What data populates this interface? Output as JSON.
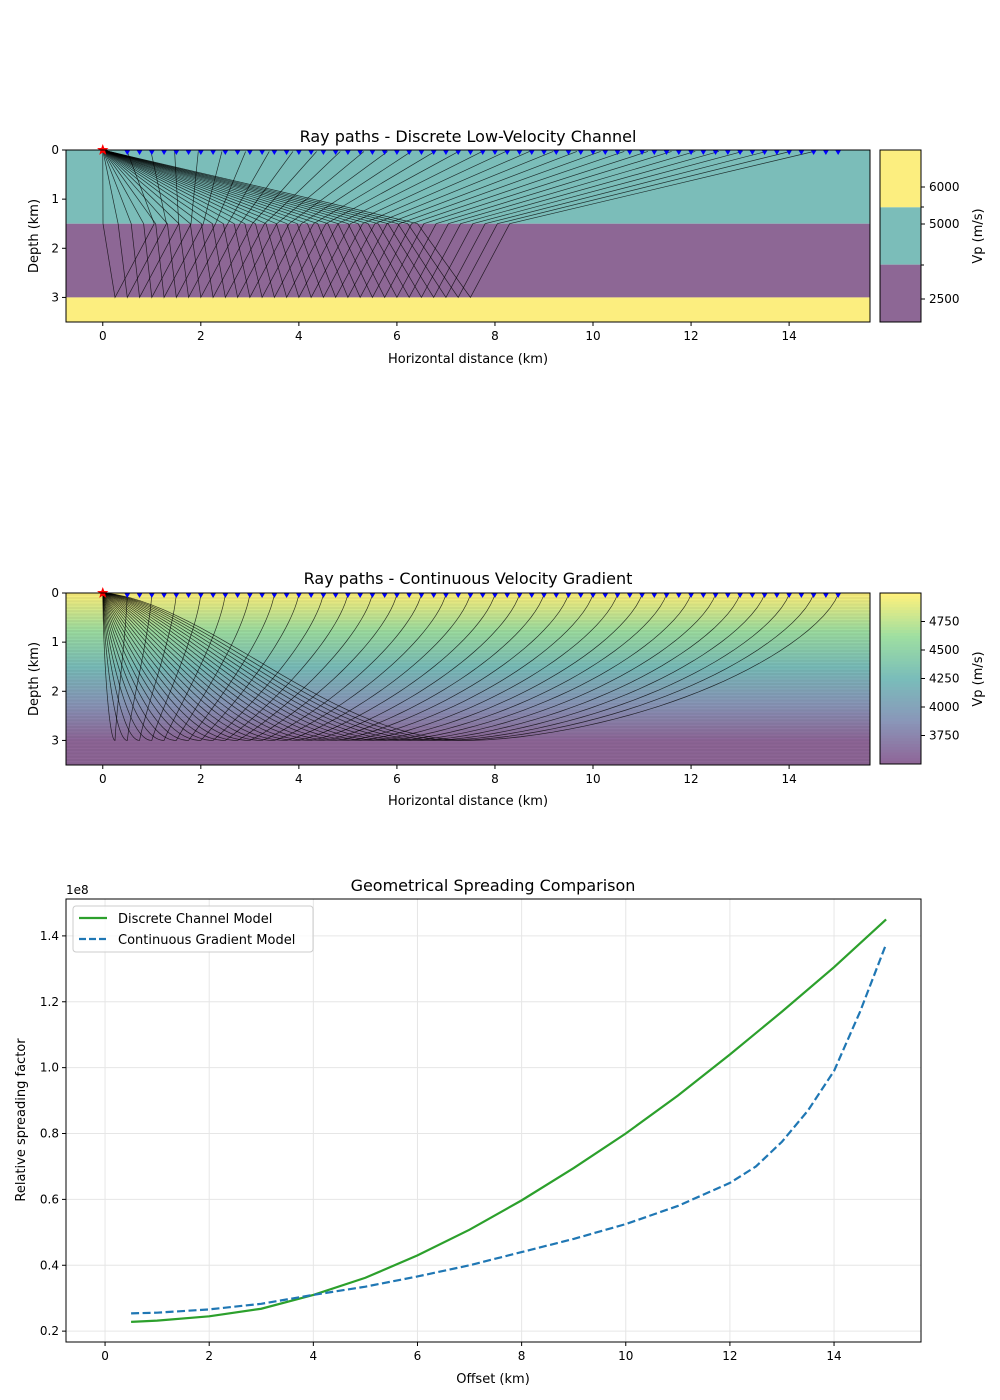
{
  "chart_data": [
    {
      "type": "heatmap",
      "title": "Ray paths - Discrete Low-Velocity Channel",
      "xlabel": "Horizontal distance (km)",
      "ylabel": "Depth (km)",
      "xlim": [
        -0.75,
        15.65
      ],
      "ylim": [
        3.5,
        0
      ],
      "xticks": [
        "0",
        "2",
        "4",
        "6",
        "8",
        "10",
        "12",
        "14"
      ],
      "yticks": [
        "0",
        "1",
        "2",
        "3"
      ],
      "layers": [
        {
          "top": 0,
          "bottom": 1.5,
          "vp": 5000,
          "color": "#7bbdb9"
        },
        {
          "top": 1.5,
          "bottom": 3.0,
          "vp": 2500,
          "color": "#8d6795"
        },
        {
          "top": 3.0,
          "bottom": 3.5,
          "vp": 6000,
          "color": "#fcee7f"
        }
      ],
      "colorbar": {
        "label": "Vp (m/s)",
        "ticks": [
          "6000",
          "5000",
          "2500"
        ]
      },
      "source": {
        "x": 0,
        "z": 0,
        "color": "#ff0000"
      },
      "receivers": {
        "from": 0.5,
        "to": 15,
        "step": 0.25,
        "color": "#0000ff"
      }
    },
    {
      "type": "heatmap",
      "title": "Ray paths - Continuous Velocity Gradient",
      "xlabel": "Horizontal distance (km)",
      "ylabel": "Depth (km)",
      "xlim": [
        -0.75,
        15.65
      ],
      "ylim": [
        3.5,
        0
      ],
      "xticks": [
        "0",
        "2",
        "4",
        "6",
        "8",
        "10",
        "12",
        "14"
      ],
      "yticks": [
        "0",
        "1",
        "2",
        "3"
      ],
      "velocity": {
        "surface": 5000,
        "depth3": 3500,
        "below3": 3500
      },
      "colorbar": {
        "label": "Vp (m/s)",
        "range": [
          3500,
          5000
        ],
        "ticks": [
          "4750",
          "4500",
          "4250",
          "4000",
          "3750"
        ]
      },
      "source": {
        "x": 0,
        "z": 0,
        "color": "#ff0000"
      },
      "receivers": {
        "from": 0.5,
        "to": 15,
        "step": 0.25,
        "color": "#0000ff"
      }
    },
    {
      "type": "line",
      "title": "Geometrical Spreading Comparison",
      "xlabel": "Offset (km)",
      "ylabel": "Relative spreading factor",
      "offset_text": "1e8",
      "xlim": [
        -0.75,
        15.67
      ],
      "ylim": [
        0.167,
        1.512
      ],
      "xticks": [
        "0",
        "2",
        "4",
        "6",
        "8",
        "10",
        "12",
        "14"
      ],
      "yticks": [
        "0.2",
        "0.4",
        "0.6",
        "0.8",
        "1.0",
        "1.2",
        "1.4"
      ],
      "grid": true,
      "legend": "top-left",
      "series": [
        {
          "name": "Discrete Channel Model",
          "color": "#2ca02c",
          "style": "solid",
          "x": [
            0.5,
            1,
            2,
            3,
            4,
            5,
            6,
            7,
            8,
            9,
            10,
            11,
            12,
            13,
            14,
            15
          ],
          "y": [
            0.228,
            0.232,
            0.245,
            0.268,
            0.31,
            0.362,
            0.43,
            0.508,
            0.597,
            0.695,
            0.8,
            0.915,
            1.04,
            1.17,
            1.305,
            1.45
          ]
        },
        {
          "name": "Continuous Gradient Model",
          "color": "#1f77b4",
          "style": "dashed",
          "x": [
            0.5,
            1,
            2,
            3,
            4,
            5,
            6,
            7,
            8,
            9,
            10,
            11,
            12,
            12.5,
            13,
            13.5,
            14,
            14.5,
            15
          ],
          "y": [
            0.254,
            0.256,
            0.266,
            0.283,
            0.31,
            0.335,
            0.366,
            0.4,
            0.44,
            0.48,
            0.525,
            0.58,
            0.65,
            0.7,
            0.775,
            0.87,
            0.99,
            1.17,
            1.375
          ]
        }
      ]
    }
  ]
}
